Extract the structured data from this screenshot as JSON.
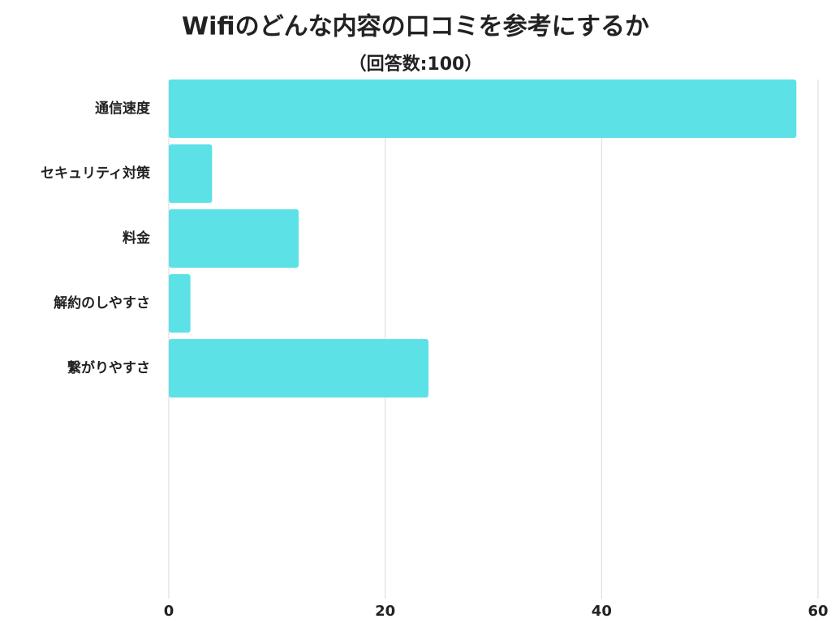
{
  "chart_data": {
    "type": "bar",
    "orientation": "horizontal",
    "title": "Wifiのどんな内容の口コミを参考にするか",
    "subtitle": "（回答数:100）",
    "categories": [
      "通信速度",
      "セキュリティ対策",
      "料金",
      "解約のしやすさ",
      "繋がりやすさ"
    ],
    "values": [
      58,
      4,
      12,
      2,
      24
    ],
    "color": "#5ce1e6",
    "xlim": [
      0,
      60
    ],
    "xticks": [
      0,
      20,
      40,
      60
    ],
    "grid": true
  }
}
